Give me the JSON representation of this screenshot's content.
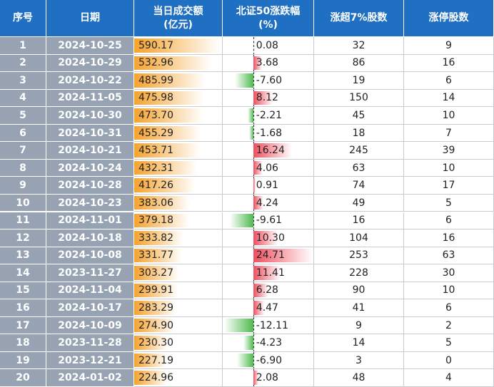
{
  "table": {
    "headers": [
      "序号",
      "日期",
      "当日成交额\n(亿元)",
      "北证50涨跌幅\n(%)",
      "涨超7%股数",
      "涨停股数"
    ],
    "rows": [
      [
        "1",
        "2024-10-25",
        "590.17",
        "0.08",
        "32",
        "9"
      ],
      [
        "2",
        "2024-10-29",
        "532.96",
        "3.68",
        "86",
        "16"
      ],
      [
        "3",
        "2024-10-22",
        "485.99",
        "-7.60",
        "19",
        "6"
      ],
      [
        "4",
        "2024-11-05",
        "475.98",
        "8.12",
        "150",
        "14"
      ],
      [
        "5",
        "2024-10-30",
        "473.70",
        "-2.21",
        "45",
        "10"
      ],
      [
        "6",
        "2024-10-31",
        "455.29",
        "-1.68",
        "18",
        "7"
      ],
      [
        "7",
        "2024-10-21",
        "453.71",
        "16.24",
        "245",
        "39"
      ],
      [
        "8",
        "2024-10-24",
        "432.31",
        "4.06",
        "63",
        "10"
      ],
      [
        "9",
        "2024-10-28",
        "417.26",
        "0.91",
        "74",
        "17"
      ],
      [
        "10",
        "2024-10-23",
        "383.06",
        "4.24",
        "49",
        "5"
      ],
      [
        "11",
        "2024-11-01",
        "379.18",
        "-9.61",
        "16",
        "6"
      ],
      [
        "12",
        "2024-10-18",
        "333.82",
        "10.30",
        "104",
        "16"
      ],
      [
        "13",
        "2024-10-08",
        "331.77",
        "24.71",
        "253",
        "63"
      ],
      [
        "14",
        "2023-11-27",
        "303.27",
        "11.41",
        "228",
        "30"
      ],
      [
        "15",
        "2024-11-04",
        "299.91",
        "6.28",
        "90",
        "10"
      ],
      [
        "16",
        "2024-10-17",
        "283.29",
        "4.47",
        "41",
        "6"
      ],
      [
        "17",
        "2024-10-09",
        "274.90",
        "-12.11",
        "9",
        "2"
      ],
      [
        "18",
        "2023-11-28",
        "230.30",
        "-4.23",
        "14",
        "5"
      ],
      [
        "19",
        "2023-12-21",
        "227.19",
        "-6.90",
        "3",
        "0"
      ],
      [
        "20",
        "2024-01-02",
        "224.96",
        "2.08",
        "48",
        "4"
      ]
    ]
  }
}
